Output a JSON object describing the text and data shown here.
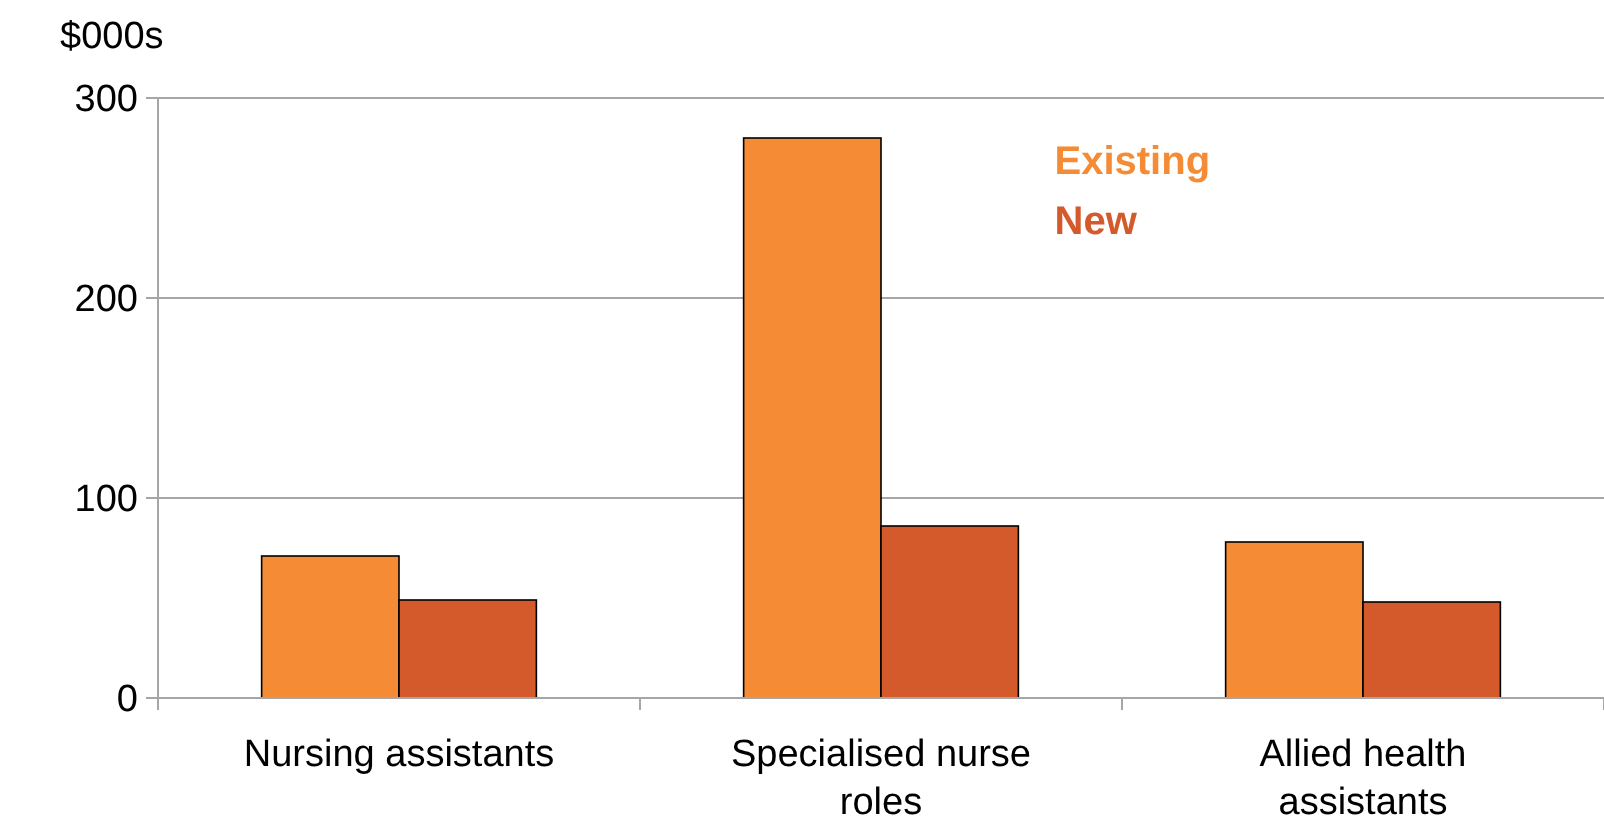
{
  "chart_data": {
    "type": "bar",
    "ylabel": "$000s",
    "categories": [
      "Nursing assistants",
      "Specialised nurse roles",
      "Allied health assistants"
    ],
    "series": [
      {
        "name": "Existing",
        "color": "#f58b35",
        "values": [
          71,
          280,
          78
        ]
      },
      {
        "name": "New",
        "color": "#d55a2b",
        "values": [
          49,
          86,
          48
        ]
      }
    ],
    "ylim": [
      0,
      300
    ],
    "yticks": [
      0,
      100,
      200,
      300
    ],
    "grid": "y",
    "legend": "top right"
  }
}
